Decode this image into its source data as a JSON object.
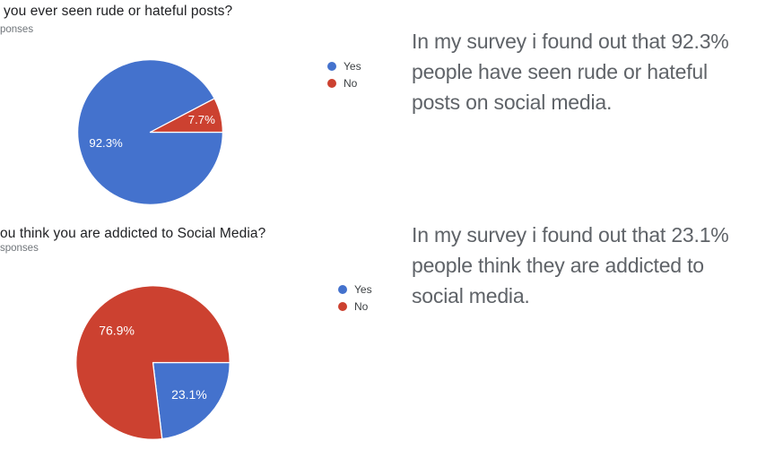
{
  "colors": {
    "yes_blue": "#4472cd",
    "no_red": "#cc4130",
    "slice_label_text": "#ffffff",
    "question_text": "#202124",
    "responses_text": "#70757a",
    "note_text": "#5f6368",
    "background": "#ffffff"
  },
  "sections": [
    {
      "question": "you ever seen rude or hateful posts?",
      "responses": "ponses",
      "note_lines": [
        "In my survey i found out that 92.3%",
        "people have seen rude or hateful",
        "posts on social media."
      ]
    },
    {
      "question": "ou think you are addicted to Social Media?",
      "responses": "sponses",
      "note_lines": [
        "In my survey i found out that 23.1%",
        "people think they are addicted to",
        "social media."
      ]
    }
  ],
  "chart_data": [
    {
      "type": "pie",
      "title": "you ever seen rude or hateful posts?",
      "categories": [
        "Yes",
        "No"
      ],
      "values": [
        92.3,
        7.7
      ],
      "slice_labels": [
        "92.3%",
        "7.7%"
      ],
      "colors": [
        "#4472cd",
        "#cc4130"
      ],
      "legend_position": "right",
      "start_angle_deg": 0,
      "direction": "clockwise"
    },
    {
      "type": "pie",
      "title": "ou think you are addicted to Social Media?",
      "categories": [
        "Yes",
        "No"
      ],
      "values": [
        23.1,
        76.9
      ],
      "slice_labels": [
        "23.1%",
        "76.9%"
      ],
      "colors": [
        "#4472cd",
        "#cc4130"
      ],
      "legend_position": "right",
      "start_angle_deg": 0,
      "direction": "clockwise"
    }
  ]
}
